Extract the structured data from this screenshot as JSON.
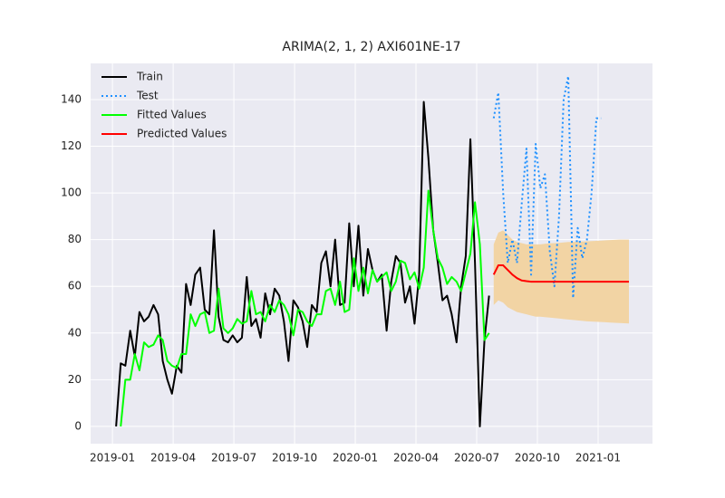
{
  "chart_data": {
    "type": "line",
    "title": "ARIMA(2, 1, 2) AXI601NE-17",
    "xlim": [
      2018.91,
      2021.224
    ],
    "ylim": [
      -7.4,
      155.5
    ],
    "xticks": [
      {
        "value": 2019.0,
        "label": "2019-01"
      },
      {
        "value": 2019.25,
        "label": "2019-04"
      },
      {
        "value": 2019.5,
        "label": "2019-07"
      },
      {
        "value": 2019.75,
        "label": "2019-10"
      },
      {
        "value": 2020.0,
        "label": "2020-01"
      },
      {
        "value": 2020.25,
        "label": "2020-04"
      },
      {
        "value": 2020.5,
        "label": "2020-07"
      },
      {
        "value": 2020.75,
        "label": "2020-10"
      },
      {
        "value": 2021.0,
        "label": "2021-01"
      }
    ],
    "yticks": [
      0,
      20,
      40,
      60,
      80,
      100,
      120,
      140
    ],
    "grid": true,
    "legend": "upper left",
    "x": [
      2019.015,
      2019.034,
      2019.053,
      2019.073,
      2019.092,
      2019.111,
      2019.13,
      2019.149,
      2019.169,
      2019.188,
      2019.207,
      2019.226,
      2019.245,
      2019.265,
      2019.284,
      2019.303,
      2019.322,
      2019.341,
      2019.361,
      2019.38,
      2019.399,
      2019.418,
      2019.437,
      2019.457,
      2019.476,
      2019.495,
      2019.514,
      2019.533,
      2019.553,
      2019.572,
      2019.591,
      2019.61,
      2019.629,
      2019.649,
      2019.668,
      2019.687,
      2019.706,
      2019.725,
      2019.745,
      2019.764,
      2019.783,
      2019.802,
      2019.821,
      2019.841,
      2019.86,
      2019.879,
      2019.898,
      2019.917,
      2019.937,
      2019.956,
      2019.975,
      2019.994,
      2020.013,
      2020.033,
      2020.052,
      2020.071,
      2020.09,
      2020.109,
      2020.129,
      2020.148,
      2020.167,
      2020.186,
      2020.205,
      2020.225,
      2020.244,
      2020.263,
      2020.282,
      2020.301,
      2020.321,
      2020.34,
      2020.359,
      2020.378,
      2020.397,
      2020.417,
      2020.436,
      2020.455,
      2020.474,
      2020.493,
      2020.513,
      2020.532,
      2020.551
    ],
    "interval": {
      "color": "#f2d4a4",
      "x": [
        2020.57,
        2020.589,
        2020.609,
        2020.628,
        2020.647,
        2020.666,
        2020.685,
        2020.705,
        2020.724,
        2020.743,
        2020.762,
        2020.781,
        2020.801,
        2020.82,
        2020.839,
        2020.858,
        2020.877,
        2020.897,
        2020.916,
        2020.935,
        2020.954,
        2020.973,
        2020.993,
        2021.012,
        2021.031,
        2021.05,
        2021.069,
        2021.089,
        2021.108,
        2021.127
      ],
      "lower": [
        52,
        54,
        53,
        51,
        50,
        49,
        48.5,
        48,
        47.5,
        47,
        47,
        46.8,
        46.6,
        46.4,
        46.2,
        46,
        45.8,
        45.6,
        45.4,
        45.2,
        45,
        44.9,
        44.8,
        44.7,
        44.6,
        44.5,
        44.4,
        44.3,
        44.2,
        44.1
      ],
      "upper": [
        78,
        83,
        84,
        82,
        80,
        79,
        78.5,
        78,
        78,
        78,
        78,
        78.2,
        78.4,
        78.5,
        78.6,
        78.8,
        79,
        79,
        79.1,
        79.2,
        79.3,
        79.4,
        79.5,
        79.6,
        79.7,
        79.8,
        79.9,
        80,
        80,
        80
      ]
    },
    "series": [
      {
        "name": "Train",
        "color": "#000000",
        "dash": "solid",
        "values": [
          0,
          27,
          26,
          41,
          30,
          49,
          45,
          47,
          52,
          48,
          28,
          20,
          14,
          26,
          23,
          61,
          52,
          65,
          68,
          50,
          48,
          84,
          47,
          37,
          36,
          39,
          36,
          38,
          64,
          43,
          46,
          38,
          57,
          48,
          59,
          56,
          45,
          28,
          54,
          51,
          45,
          34,
          52,
          49,
          70,
          75,
          60,
          80,
          52,
          53,
          87,
          60,
          86,
          56,
          76,
          67,
          62,
          65,
          41,
          62,
          73,
          70,
          53,
          60,
          44,
          65,
          139,
          115,
          84,
          70,
          54,
          56,
          48,
          36,
          60,
          73,
          123,
          70,
          0,
          37,
          56
        ]
      },
      {
        "name": "Test",
        "color": "#1e90ff",
        "dash": "dotted",
        "x": [
          2020.57,
          2020.589,
          2020.609,
          2020.628,
          2020.647,
          2020.666,
          2020.685,
          2020.705,
          2020.724,
          2020.743,
          2020.762,
          2020.781,
          2020.801,
          2020.82,
          2020.839,
          2020.858,
          2020.877,
          2020.897,
          2020.916,
          2020.935,
          2020.954,
          2020.973,
          2020.993,
          2021.012
        ],
        "values": [
          132,
          143,
          100,
          70,
          80,
          70,
          95,
          119,
          65,
          121,
          102,
          108,
          75,
          60,
          90,
          140,
          150,
          55,
          85,
          72,
          80,
          100,
          132,
          132
        ]
      },
      {
        "name": "Fitted Values",
        "color": "#00ff00",
        "dash": "solid",
        "values": [
          null,
          0,
          20,
          20,
          31,
          24,
          36,
          34,
          35,
          39,
          37,
          28,
          26,
          25,
          31,
          31,
          48,
          43,
          48,
          49,
          40,
          41,
          59,
          42,
          40,
          42,
          46,
          44,
          45,
          58,
          48,
          49,
          45,
          52,
          49,
          54,
          52,
          48,
          39,
          50,
          49,
          45,
          43,
          48,
          48,
          58,
          59,
          52,
          62,
          49,
          50,
          72,
          58,
          68,
          57,
          67,
          62,
          64,
          66,
          58,
          62,
          71,
          70,
          63,
          66,
          59,
          68,
          101,
          84,
          72,
          68,
          61,
          64,
          62,
          58,
          66,
          74,
          96,
          78,
          37,
          40
        ]
      },
      {
        "name": "Predicted Values",
        "color": "#ff0000",
        "dash": "solid",
        "x": [
          2020.57,
          2020.589,
          2020.609,
          2020.628,
          2020.647,
          2020.666,
          2020.685,
          2020.705,
          2020.724,
          2020.743,
          2020.762,
          2020.781,
          2020.801,
          2020.82,
          2020.839,
          2020.858,
          2020.877,
          2020.897,
          2020.916,
          2020.935,
          2020.954,
          2020.973,
          2020.993,
          2021.012,
          2021.031,
          2021.05,
          2021.069,
          2021.089,
          2021.108,
          2021.127
        ],
        "values": [
          65,
          69,
          69,
          67,
          65,
          63.5,
          62.5,
          62.2,
          62,
          62,
          62,
          62,
          62,
          62,
          62,
          62,
          62,
          62,
          62,
          62,
          62,
          62,
          62,
          62,
          62,
          62,
          62,
          62,
          62,
          62
        ]
      }
    ]
  }
}
